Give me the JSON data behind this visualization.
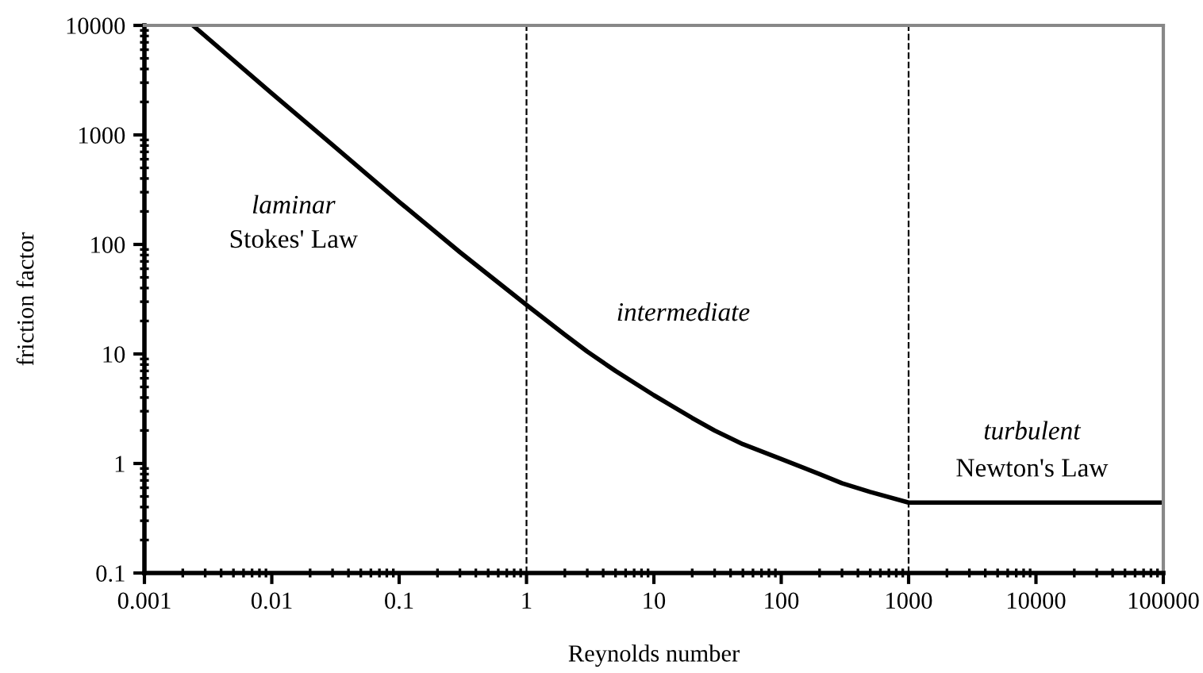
{
  "chart_data": {
    "type": "line",
    "xlabel": "Reynolds number",
    "ylabel": "friction factor",
    "log": "xy",
    "xlim": [
      0.001,
      100000
    ],
    "ylim": [
      0.1,
      10000
    ],
    "xticks": [
      {
        "value": 0.001,
        "label": "0.001"
      },
      {
        "value": 0.01,
        "label": "0.01"
      },
      {
        "value": 0.1,
        "label": "0.1"
      },
      1,
      10,
      100,
      1000,
      10000,
      100000
    ],
    "yticks": [
      {
        "value": 0.1,
        "label": "0.1"
      },
      1,
      10,
      100,
      1000,
      10000
    ],
    "series": [
      {
        "color": "#000000",
        "x": [
          0.0024,
          0.01,
          0.03,
          0.1,
          0.3,
          1,
          2,
          3,
          5,
          10,
          20,
          30,
          50,
          100,
          200,
          300,
          500,
          1000,
          1400,
          100000
        ],
        "values": [
          10000,
          2400,
          810,
          245,
          85,
          28,
          15,
          10.5,
          7,
          4.2,
          2.6,
          2,
          1.5,
          1.1,
          0.8,
          0.66,
          0.55,
          0.44,
          0.44,
          0.44
        ]
      }
    ],
    "ref_lines": [
      {
        "axis": "x",
        "value": 1,
        "line_style": "dashed",
        "color": "#000000"
      },
      {
        "axis": "x",
        "value": 1000,
        "line_style": "dashed",
        "color": "#000000"
      }
    ],
    "annotations": [
      "laminar",
      "Stokes' Law",
      "intermediate",
      "turbulent",
      "Newton's Law"
    ],
    "grid": false,
    "legend": false,
    "marker": "none",
    "line_style": "solid"
  }
}
